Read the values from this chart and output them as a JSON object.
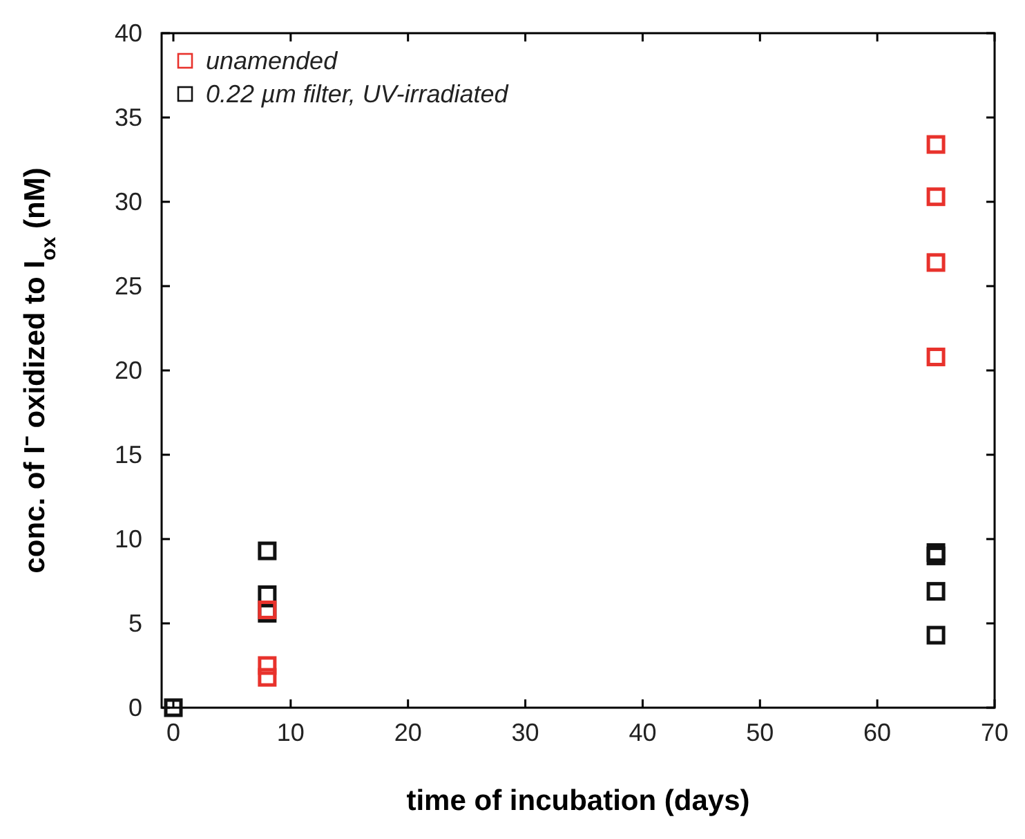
{
  "chart_data": {
    "type": "scatter",
    "xlabel": "time of incubation (days)",
    "ylabel": "conc. of I⁻ oxidized to I$_{ox}$ (nM)",
    "xlim": [
      -1,
      70
    ],
    "ylim": [
      0,
      40
    ],
    "xticks": [
      0,
      10,
      20,
      30,
      40,
      50,
      60,
      70
    ],
    "yticks": [
      0,
      5,
      10,
      15,
      20,
      25,
      30,
      35,
      40
    ],
    "marker": "square",
    "legend": "top left",
    "grid": false,
    "series": [
      {
        "name": "unamended",
        "color": "#e8322c",
        "x": [
          8,
          8,
          8,
          65,
          65,
          65,
          65
        ],
        "values": [
          5.8,
          2.5,
          1.8,
          33.4,
          30.3,
          26.4,
          20.8
        ]
      },
      {
        "name": "0.22 µm filter, UV-irradiated",
        "color": "#111111",
        "x": [
          0,
          8,
          8,
          8,
          65,
          65,
          65,
          65
        ],
        "values": [
          0,
          9.3,
          6.7,
          5.6,
          9.2,
          9.0,
          6.9,
          4.3
        ]
      }
    ]
  }
}
